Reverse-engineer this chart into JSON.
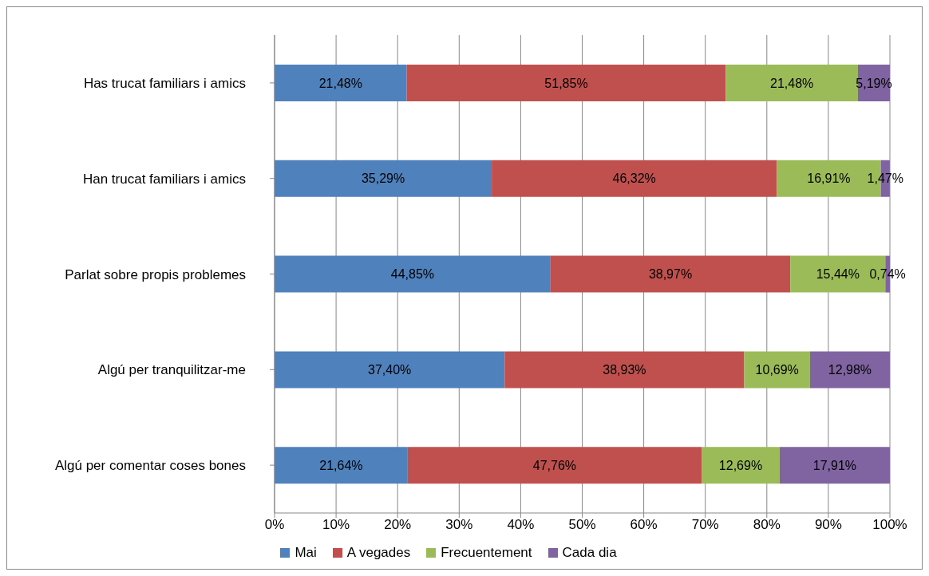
{
  "chart_data": {
    "type": "bar",
    "orientation": "horizontal",
    "stacked": true,
    "categories": [
      "Has trucat familiars i amics",
      "Han trucat familiars i amics",
      "Parlat sobre propis problemes",
      "Algú per tranquilitzar-me",
      "Algú per comentar coses bones"
    ],
    "series": [
      {
        "name": "Mai",
        "color": "#4f81bd",
        "values": [
          21.48,
          35.29,
          44.85,
          37.4,
          21.64
        ],
        "value_labels": [
          "21,48%",
          "35,29%",
          "44,85%",
          "37,40%",
          "21,64%"
        ]
      },
      {
        "name": "A vegades",
        "color": "#c0504d",
        "values": [
          51.85,
          46.32,
          38.97,
          38.93,
          47.76
        ],
        "value_labels": [
          "51,85%",
          "46,32%",
          "38,97%",
          "38,93%",
          "47,76%"
        ]
      },
      {
        "name": "Frecuentement",
        "color": "#9bbb59",
        "values": [
          21.48,
          16.91,
          15.44,
          10.69,
          12.69
        ],
        "value_labels": [
          "21,48%",
          "16,91%",
          "15,44%",
          "10,69%",
          "12,69%"
        ]
      },
      {
        "name": "Cada dia",
        "color": "#8064a2",
        "values": [
          5.19,
          1.47,
          0.74,
          12.98,
          17.91
        ],
        "value_labels": [
          "5,19%",
          "1,47%",
          "0,74%",
          "12,98%",
          "17,91%"
        ]
      }
    ],
    "xlim": [
      0,
      100
    ],
    "xticks": [
      {
        "value": 0,
        "label": "0%"
      },
      {
        "value": 10,
        "label": "10%"
      },
      {
        "value": 20,
        "label": "20%"
      },
      {
        "value": 30,
        "label": "30%"
      },
      {
        "value": 40,
        "label": "40%"
      },
      {
        "value": 50,
        "label": "50%"
      },
      {
        "value": 60,
        "label": "60%"
      },
      {
        "value": 70,
        "label": "70%"
      },
      {
        "value": 80,
        "label": "80%"
      },
      {
        "value": 90,
        "label": "90%"
      },
      {
        "value": 100,
        "label": "100%"
      }
    ],
    "grid": "x",
    "legend": "bottom"
  }
}
